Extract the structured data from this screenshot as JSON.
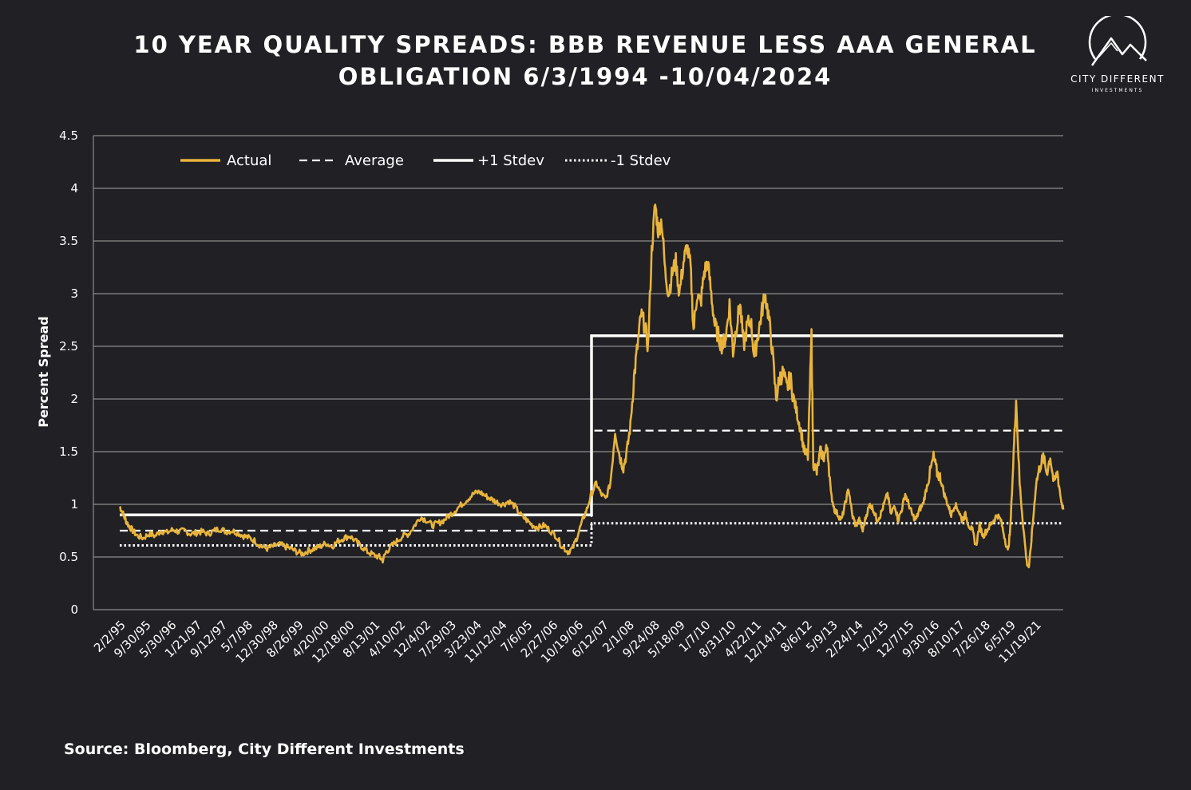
{
  "title_line1": "10 YEAR QUALITY SPREADS: BBB REVENUE LESS AAA GENERAL",
  "title_line2": "OBLIGATION 6/3/1994 -10/04/2024",
  "logo": {
    "name": "CITY DIFFERENT",
    "sub": "INVESTMENTS",
    "icon": "mountain-circle-icon"
  },
  "source": "Source: Bloomberg, City Different Investments",
  "colors": {
    "background": "#212024",
    "actual": "#e8b43c",
    "bands": "#ffffff",
    "grid": "#8c8c8c"
  },
  "chart_data": {
    "type": "line",
    "title": "10 YEAR QUALITY SPREADS: BBB REVENUE LESS AAA GENERAL OBLIGATION 6/3/1994 -10/04/2024",
    "ylabel": "Percent Spread",
    "xlabel": "",
    "ylim": [
      0,
      4.5
    ],
    "yticks": [
      "0",
      "0.5",
      "1",
      "1.5",
      "2",
      "2.5",
      "3",
      "3.5",
      "4",
      "4.5"
    ],
    "grid": true,
    "legend_position": "top-left",
    "x_tick_labels": [
      "2/2/95",
      "9/30/95",
      "5/30/96",
      "1/21/97",
      "9/12/97",
      "5/7/98",
      "12/30/98",
      "8/26/99",
      "4/20/00",
      "12/18/00",
      "8/13/01",
      "4/10/02",
      "12/4/02",
      "7/29/03",
      "3/23/04",
      "11/12/04",
      "7/6/05",
      "2/27/06",
      "10/19/06",
      "6/12/07",
      "2/1/08",
      "9/24/08",
      "5/18/09",
      "1/7/10",
      "8/31/10",
      "4/22/11",
      "12/14/11",
      "8/6/12",
      "5/9/13",
      "2/24/14",
      "1/2/15",
      "12/7/15",
      "9/30/16",
      "8/10/17",
      "7/26/18",
      "6/5/19",
      "11/19/21"
    ],
    "x_range": [
      "6/3/1994",
      "10/04/2024"
    ],
    "legend": [
      "Actual",
      "Average",
      "+1 Stdev",
      "-1 Stdev"
    ],
    "regime_break": "2/1/08",
    "series": [
      {
        "name": "Actual",
        "style": "solid",
        "points": [
          [
            0.0,
            0.98
          ],
          [
            0.5,
            0.92
          ],
          [
            1.0,
            0.85
          ],
          [
            1.5,
            0.8
          ],
          [
            2.2,
            0.75
          ],
          [
            3.0,
            0.7
          ],
          [
            4.0,
            0.68
          ],
          [
            5.0,
            0.72
          ],
          [
            6.0,
            0.7
          ],
          [
            7.0,
            0.75
          ],
          [
            8.0,
            0.73
          ],
          [
            9.0,
            0.76
          ],
          [
            10.0,
            0.74
          ],
          [
            11.0,
            0.75
          ],
          [
            12.0,
            0.72
          ],
          [
            13.0,
            0.73
          ],
          [
            14.0,
            0.74
          ],
          [
            15.0,
            0.72
          ],
          [
            16.0,
            0.75
          ],
          [
            17.0,
            0.77
          ],
          [
            18.0,
            0.74
          ],
          [
            19.0,
            0.75
          ],
          [
            20.0,
            0.73
          ],
          [
            21.0,
            0.7
          ],
          [
            22.0,
            0.68
          ],
          [
            23.0,
            0.65
          ],
          [
            24.0,
            0.6
          ],
          [
            25.0,
            0.58
          ],
          [
            26.0,
            0.6
          ],
          [
            27.0,
            0.62
          ],
          [
            28.0,
            0.6
          ],
          [
            29.0,
            0.58
          ],
          [
            30.0,
            0.55
          ],
          [
            31.0,
            0.53
          ],
          [
            32.0,
            0.56
          ],
          [
            33.0,
            0.58
          ],
          [
            34.0,
            0.6
          ],
          [
            35.0,
            0.63
          ],
          [
            36.0,
            0.6
          ],
          [
            37.0,
            0.65
          ],
          [
            38.0,
            0.68
          ],
          [
            39.0,
            0.7
          ],
          [
            40.0,
            0.65
          ],
          [
            41.0,
            0.6
          ],
          [
            42.0,
            0.55
          ],
          [
            43.0,
            0.52
          ],
          [
            44.0,
            0.5
          ],
          [
            44.6,
            0.47
          ],
          [
            45.2,
            0.55
          ],
          [
            46.0,
            0.6
          ],
          [
            47.0,
            0.65
          ],
          [
            48.0,
            0.7
          ],
          [
            49.0,
            0.72
          ],
          [
            50.0,
            0.8
          ],
          [
            51.0,
            0.88
          ],
          [
            52.0,
            0.85
          ],
          [
            53.0,
            0.8
          ],
          [
            54.0,
            0.82
          ],
          [
            55.0,
            0.85
          ],
          [
            56.0,
            0.9
          ],
          [
            57.0,
            0.95
          ],
          [
            58.0,
            1.0
          ],
          [
            59.0,
            1.05
          ],
          [
            60.0,
            1.1
          ],
          [
            61.0,
            1.12
          ],
          [
            62.0,
            1.08
          ],
          [
            63.0,
            1.05
          ],
          [
            64.0,
            1.02
          ],
          [
            65.0,
            1.0
          ],
          [
            66.0,
            1.03
          ],
          [
            67.0,
            0.98
          ],
          [
            68.0,
            0.9
          ],
          [
            69.0,
            0.85
          ],
          [
            70.0,
            0.8
          ],
          [
            71.0,
            0.78
          ],
          [
            72.0,
            0.8
          ],
          [
            73.0,
            0.75
          ],
          [
            74.0,
            0.7
          ],
          [
            75.0,
            0.6
          ],
          [
            76.0,
            0.55
          ],
          [
            76.8,
            0.58
          ],
          [
            77.6,
            0.7
          ],
          [
            78.5,
            0.85
          ],
          [
            79.2,
            0.95
          ],
          [
            80.0,
            1.1
          ],
          [
            80.8,
            1.2
          ],
          [
            81.6,
            1.1
          ],
          [
            82.4,
            1.05
          ],
          [
            83.2,
            1.2
          ],
          [
            84.0,
            1.7
          ],
          [
            84.8,
            1.45
          ],
          [
            85.4,
            1.35
          ],
          [
            86.0,
            1.5
          ],
          [
            86.6,
            1.75
          ],
          [
            87.2,
            2.2
          ],
          [
            87.8,
            2.5
          ],
          [
            88.4,
            2.8
          ],
          [
            89.0,
            2.7
          ],
          [
            89.6,
            2.5
          ],
          [
            90.2,
            3.4
          ],
          [
            90.8,
            3.85
          ],
          [
            91.3,
            3.6
          ],
          [
            91.9,
            3.7
          ],
          [
            92.5,
            3.2
          ],
          [
            93.1,
            3.0
          ],
          [
            93.7,
            3.2
          ],
          [
            94.3,
            3.3
          ],
          [
            94.9,
            3.0
          ],
          [
            95.6,
            3.3
          ],
          [
            96.2,
            3.45
          ],
          [
            96.8,
            3.25
          ],
          [
            97.3,
            2.65
          ],
          [
            97.9,
            3.0
          ],
          [
            98.5,
            2.9
          ],
          [
            99.1,
            3.2
          ],
          [
            99.7,
            3.3
          ],
          [
            100.3,
            3.0
          ],
          [
            100.9,
            2.7
          ],
          [
            101.5,
            2.6
          ],
          [
            102.2,
            2.5
          ],
          [
            102.8,
            2.6
          ],
          [
            103.4,
            2.9
          ],
          [
            104.0,
            2.45
          ],
          [
            104.6,
            2.7
          ],
          [
            105.2,
            2.9
          ],
          [
            105.8,
            2.5
          ],
          [
            106.4,
            2.7
          ],
          [
            107.0,
            2.75
          ],
          [
            107.6,
            2.4
          ],
          [
            108.2,
            2.6
          ],
          [
            108.8,
            2.8
          ],
          [
            109.4,
            3.0
          ],
          [
            110.0,
            2.8
          ],
          [
            110.6,
            2.5
          ],
          [
            111.3,
            2.0
          ],
          [
            111.9,
            2.2
          ],
          [
            112.5,
            2.25
          ],
          [
            113.1,
            2.1
          ],
          [
            113.7,
            2.2
          ],
          [
            114.3,
            2.0
          ],
          [
            114.9,
            1.85
          ],
          [
            115.5,
            1.7
          ],
          [
            116.1,
            1.5
          ],
          [
            116.7,
            1.45
          ],
          [
            117.3,
            2.6
          ],
          [
            117.6,
            1.4
          ],
          [
            118.2,
            1.3
          ],
          [
            118.8,
            1.5
          ],
          [
            119.4,
            1.45
          ],
          [
            120.0,
            1.55
          ],
          [
            120.6,
            1.1
          ],
          [
            121.2,
            0.95
          ],
          [
            121.8,
            0.9
          ],
          [
            122.4,
            0.85
          ],
          [
            123.0,
            1.0
          ],
          [
            123.6,
            1.15
          ],
          [
            124.2,
            0.9
          ],
          [
            124.8,
            0.8
          ],
          [
            125.4,
            0.85
          ],
          [
            126.0,
            0.75
          ],
          [
            126.6,
            0.9
          ],
          [
            127.2,
            1.0
          ],
          [
            127.8,
            0.95
          ],
          [
            128.4,
            0.85
          ],
          [
            129.0,
            0.9
          ],
          [
            129.6,
            1.0
          ],
          [
            130.2,
            1.1
          ],
          [
            130.8,
            0.9
          ],
          [
            131.4,
            1.0
          ],
          [
            132.0,
            0.85
          ],
          [
            132.6,
            0.95
          ],
          [
            133.2,
            1.1
          ],
          [
            133.8,
            1.0
          ],
          [
            134.4,
            0.9
          ],
          [
            135.0,
            0.85
          ],
          [
            135.6,
            0.95
          ],
          [
            136.2,
            1.0
          ],
          [
            136.8,
            1.15
          ],
          [
            137.4,
            1.3
          ],
          [
            138.0,
            1.45
          ],
          [
            138.6,
            1.3
          ],
          [
            139.2,
            1.25
          ],
          [
            139.8,
            1.1
          ],
          [
            140.4,
            1.0
          ],
          [
            141.0,
            0.9
          ],
          [
            141.6,
            1.0
          ],
          [
            142.2,
            0.95
          ],
          [
            142.8,
            0.85
          ],
          [
            143.4,
            0.9
          ],
          [
            144.0,
            0.8
          ],
          [
            144.6,
            0.75
          ],
          [
            145.2,
            0.6
          ],
          [
            145.8,
            0.8
          ],
          [
            146.4,
            0.7
          ],
          [
            147.0,
            0.75
          ],
          [
            147.6,
            0.8
          ],
          [
            148.2,
            0.85
          ],
          [
            148.8,
            0.9
          ],
          [
            149.4,
            0.85
          ],
          [
            150.0,
            0.7
          ],
          [
            150.6,
            0.55
          ],
          [
            151.0,
            0.75
          ],
          [
            151.6,
            1.5
          ],
          [
            152.0,
            2.0
          ],
          [
            152.6,
            1.2
          ],
          [
            153.2,
            0.8
          ],
          [
            153.8,
            0.45
          ],
          [
            154.2,
            0.4
          ],
          [
            154.8,
            0.8
          ],
          [
            155.4,
            1.2
          ],
          [
            156.0,
            1.35
          ],
          [
            156.6,
            1.45
          ],
          [
            157.2,
            1.3
          ],
          [
            157.8,
            1.45
          ],
          [
            158.4,
            1.2
          ],
          [
            159.0,
            1.3
          ],
          [
            159.6,
            1.05
          ],
          [
            160.0,
            0.95
          ]
        ]
      },
      {
        "name": "Average",
        "style": "dashed",
        "segments": [
          {
            "x0": 0,
            "x1": 80,
            "y": 0.75
          },
          {
            "x0": 80,
            "x1": 160,
            "y": 1.7
          }
        ]
      },
      {
        "name": "+1 Stdev",
        "style": "solid",
        "segments": [
          {
            "x0": 0,
            "x1": 80,
            "y": 0.9
          },
          {
            "x0": 80,
            "x1": 160,
            "y": 2.6
          }
        ]
      },
      {
        "name": "-1 Stdev",
        "style": "dotted",
        "segments": [
          {
            "x0": 0,
            "x1": 80,
            "y": 0.61
          },
          {
            "x0": 80,
            "x1": 160,
            "y": 0.82
          }
        ]
      }
    ]
  }
}
